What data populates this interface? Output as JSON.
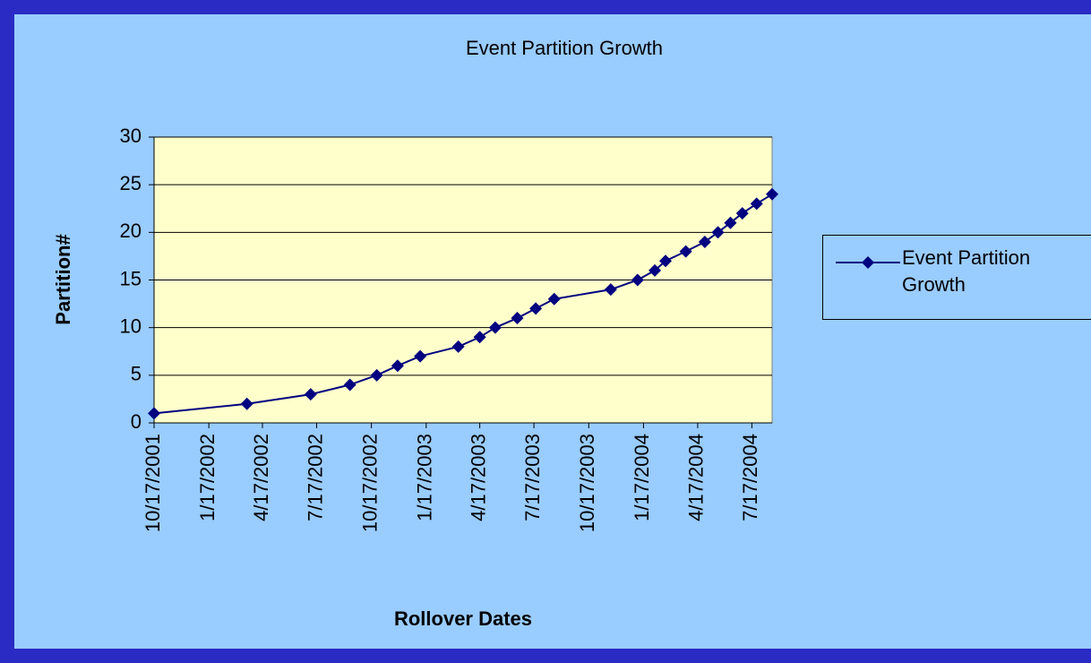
{
  "chart_data": {
    "type": "line",
    "title": "Event Partition Growth",
    "x_label": "Rollover Dates",
    "y_label": "Partition#",
    "x": [
      "10/17/2001",
      "3/22/2002",
      "7/7/2002",
      "9/11/2002",
      "10/26/2002",
      "11/30/2002",
      "1/7/2003",
      "3/12/2003",
      "4/17/2003",
      "5/13/2003",
      "6/19/2003",
      "7/20/2003",
      "8/20/2003",
      "11/23/2003",
      "1/7/2004",
      "2/5/2004",
      "2/23/2004",
      "3/28/2004",
      "4/29/2004",
      "5/21/2004",
      "6/11/2004",
      "7/1/2004",
      "7/25/2004",
      "8/20/2004"
    ],
    "series": [
      {
        "name": "Event Partition Growth",
        "color": "#000080",
        "values": [
          1,
          2,
          3,
          4,
          5,
          6,
          7,
          8,
          9,
          10,
          11,
          12,
          13,
          14,
          15,
          16,
          17,
          18,
          19,
          20,
          21,
          22,
          23,
          24
        ]
      }
    ],
    "xlim": [
      "10/17/2001",
      "8/20/2004"
    ],
    "xticks": [
      "10/17/2001",
      "1/17/2002",
      "4/17/2002",
      "7/17/2002",
      "10/17/2002",
      "1/17/2003",
      "4/17/2003",
      "7/17/2003",
      "10/17/2003",
      "1/17/2004",
      "4/17/2004",
      "7/17/2004"
    ],
    "ylim": [
      0,
      30
    ],
    "yticks": [
      0,
      5,
      10,
      15,
      20,
      25,
      30
    ],
    "grid": true,
    "legend": "right"
  }
}
